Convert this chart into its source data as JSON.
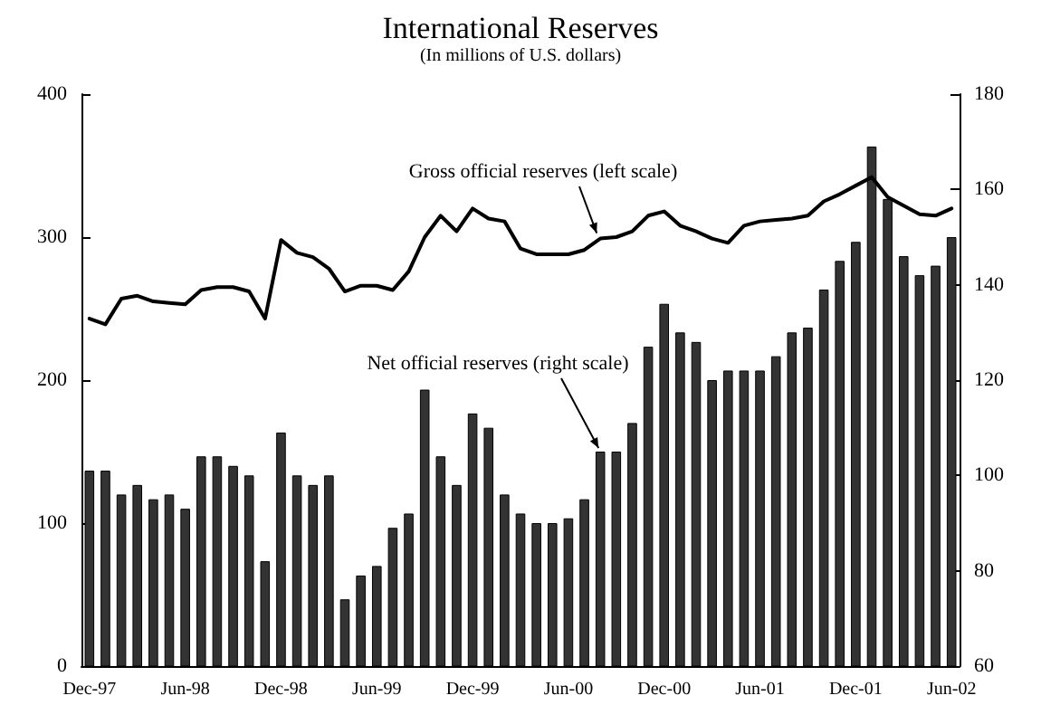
{
  "chart_data": {
    "type": "bar",
    "title": "International Reserves",
    "subtitle": "(In millions of U.S. dollars)",
    "categories": [
      "Dec-97",
      null,
      null,
      null,
      null,
      null,
      "Jun-98",
      null,
      null,
      null,
      null,
      null,
      "Dec-98",
      null,
      null,
      null,
      null,
      null,
      "Jun-99",
      null,
      null,
      null,
      null,
      null,
      "Dec-99",
      null,
      null,
      null,
      null,
      null,
      "Jun-00",
      null,
      null,
      null,
      null,
      null,
      "Dec-00",
      null,
      null,
      null,
      null,
      null,
      "Jun-01",
      null,
      null,
      null,
      null,
      null,
      "Dec-01",
      null,
      null,
      null,
      null,
      null,
      "Jun-02"
    ],
    "series": [
      {
        "name": "Net official reserves (right scale)",
        "axis": "y2",
        "color": "#333333",
        "values": [
          101,
          101,
          96,
          98,
          95,
          96,
          93,
          104,
          104,
          102,
          100,
          82,
          109,
          100,
          98,
          100,
          74,
          79,
          81,
          89,
          92,
          118,
          104,
          98,
          113,
          110,
          96,
          92,
          90,
          90,
          91,
          95,
          105,
          105,
          111,
          127,
          136,
          130,
          128,
          120,
          122,
          122,
          122,
          125,
          130,
          131,
          139,
          145,
          149,
          169,
          158,
          146,
          142,
          144,
          150
        ]
      },
      {
        "name": "Gross official reserves (left scale)",
        "type": "line",
        "color": "#000000",
        "values": [
          243,
          239,
          257,
          259,
          255,
          254,
          253,
          263,
          265,
          265,
          262,
          243,
          298,
          289,
          286,
          278,
          262,
          266,
          266,
          263,
          276,
          300,
          315,
          304,
          320,
          313,
          311,
          292,
          288,
          288,
          288,
          291,
          299,
          300,
          304,
          315,
          318,
          308,
          304,
          299,
          296,
          308,
          311,
          312,
          313,
          315,
          325,
          330,
          336,
          342,
          328,
          322,
          316,
          315,
          320
        ]
      }
    ],
    "ylim": [
      0,
      400
    ],
    "yticks": [
      0,
      100,
      200,
      300,
      400
    ],
    "y2lim": [
      60,
      180
    ],
    "y2ticks": [
      60,
      80,
      100,
      120,
      140,
      160,
      180
    ],
    "grid": false,
    "legend": false,
    "marker": "none",
    "line_style": "solid"
  }
}
